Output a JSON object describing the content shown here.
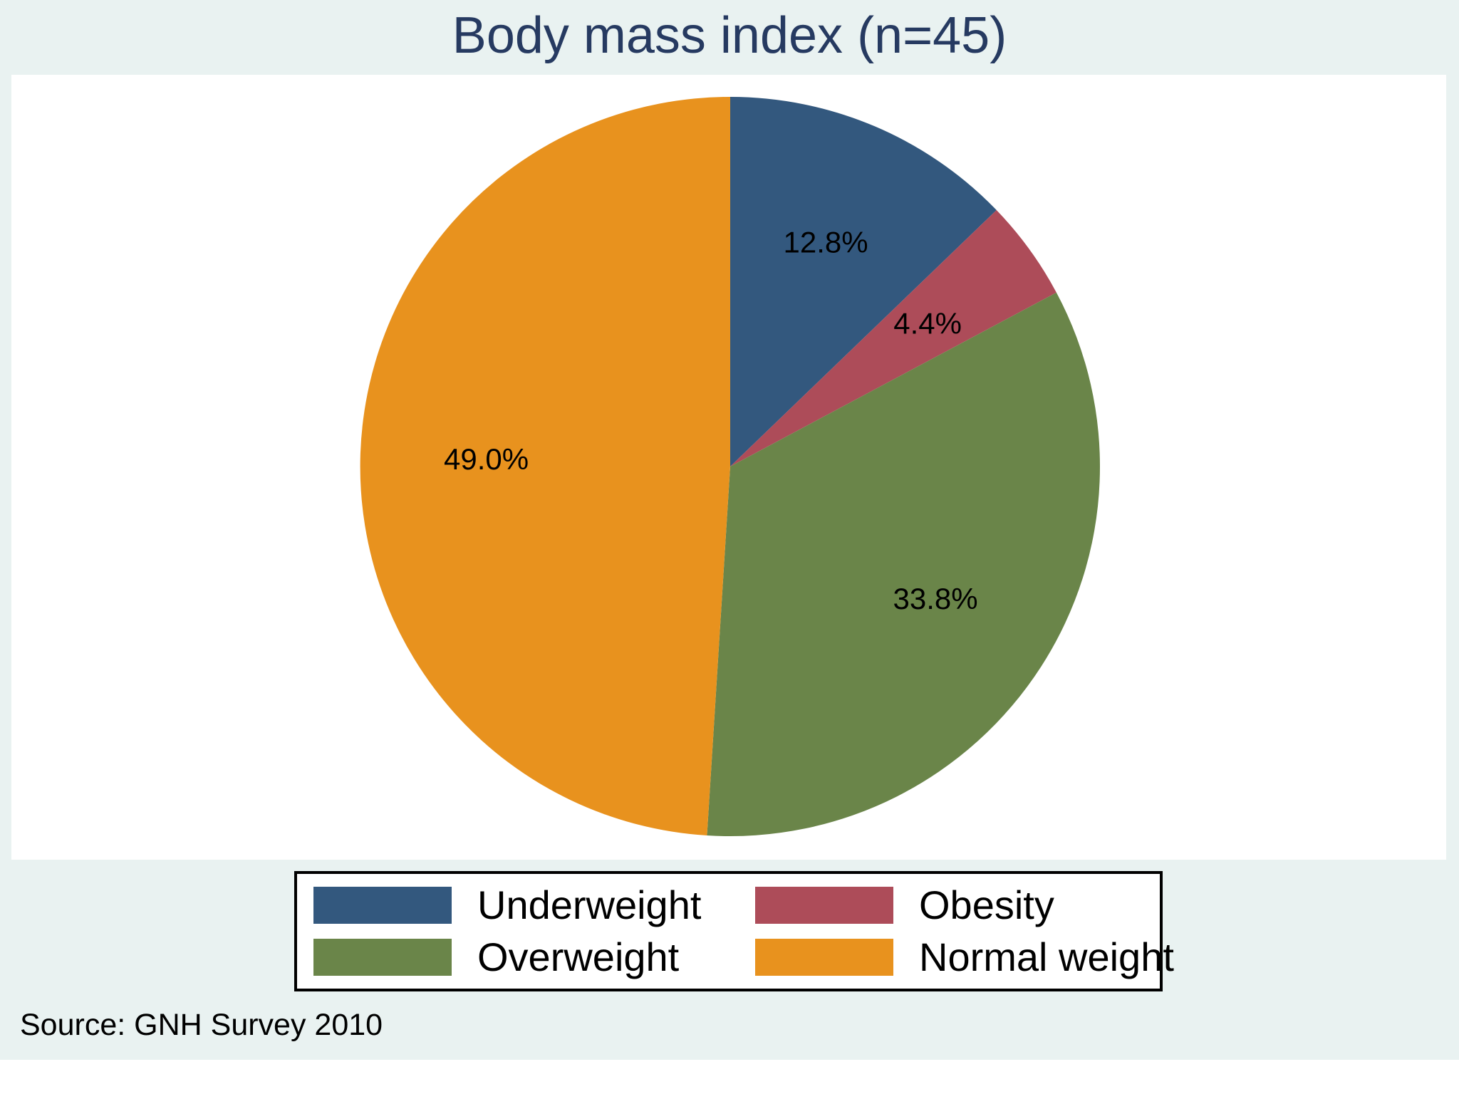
{
  "figure": {
    "title": "Body mass index (n=45)",
    "title_color": "#263a61",
    "background_color": "#e9f2f1",
    "plot_background_color": "#ffffff",
    "source_note": "Source: GNH Survey 2010",
    "text_color": "#000000",
    "legend_border_color": "#000000"
  },
  "chart_data": {
    "type": "pie",
    "title": "Body mass index (n=45)",
    "n": 45,
    "start_angle_deg": 0,
    "direction": "clockwise",
    "slices": [
      {
        "label": "Underweight",
        "value_pct": 12.8,
        "data_label": "12.8%",
        "color": "#33587e"
      },
      {
        "label": "Obesity",
        "value_pct": 4.4,
        "data_label": "4.4%",
        "color": "#ad4c59"
      },
      {
        "label": "Overweight",
        "value_pct": 33.8,
        "data_label": "33.8%",
        "color": "#6a8549"
      },
      {
        "label": "Normal weight",
        "value_pct": 49.0,
        "data_label": "49.0%",
        "color": "#e8921e"
      }
    ],
    "legend": {
      "position": "bottom",
      "rows": 2,
      "columns": 2,
      "order": [
        "Underweight",
        "Obesity",
        "Overweight",
        "Normal weight"
      ]
    },
    "data_labels": "percent-inside-slices",
    "grid": false
  }
}
